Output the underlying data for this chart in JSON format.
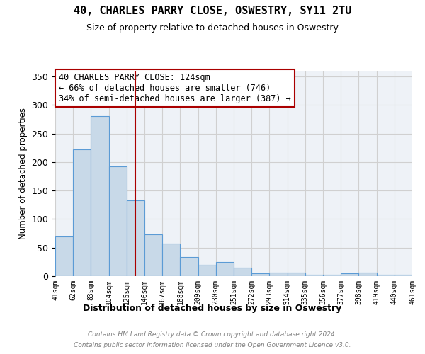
{
  "title": "40, CHARLES PARRY CLOSE, OSWESTRY, SY11 2TU",
  "subtitle": "Size of property relative to detached houses in Oswestry",
  "xlabel": "Distribution of detached houses by size in Oswestry",
  "ylabel": "Number of detached properties",
  "bar_labels": [
    "41sqm",
    "62sqm",
    "83sqm",
    "104sqm",
    "125sqm",
    "146sqm",
    "167sqm",
    "188sqm",
    "209sqm",
    "230sqm",
    "251sqm",
    "272sqm",
    "293sqm",
    "314sqm",
    "335sqm",
    "356sqm",
    "377sqm",
    "398sqm",
    "419sqm",
    "440sqm",
    "461sqm"
  ],
  "bar_values": [
    70,
    222,
    280,
    193,
    133,
    73,
    57,
    34,
    20,
    25,
    15,
    5,
    6,
    6,
    2,
    3,
    5,
    6,
    2,
    2
  ],
  "bar_color": "#c8d9e8",
  "bar_edge_color": "#5b9bd5",
  "vline_x_index": 4,
  "vline_color": "#aa0000",
  "annotation_line1": "40 CHARLES PARRY CLOSE: 124sqm",
  "annotation_line2": "← 66% of detached houses are smaller (746)",
  "annotation_line3": "34% of semi-detached houses are larger (387) →",
  "annotation_box_color": "white",
  "annotation_box_edge": "#aa0000",
  "ylim": [
    0,
    360
  ],
  "yticks": [
    0,
    50,
    100,
    150,
    200,
    250,
    300,
    350
  ],
  "footer_line1": "Contains HM Land Registry data © Crown copyright and database right 2024.",
  "footer_line2": "Contains public sector information licensed under the Open Government Licence v3.0.",
  "grid_color": "#d0d0d0",
  "background_color": "#eef2f7"
}
